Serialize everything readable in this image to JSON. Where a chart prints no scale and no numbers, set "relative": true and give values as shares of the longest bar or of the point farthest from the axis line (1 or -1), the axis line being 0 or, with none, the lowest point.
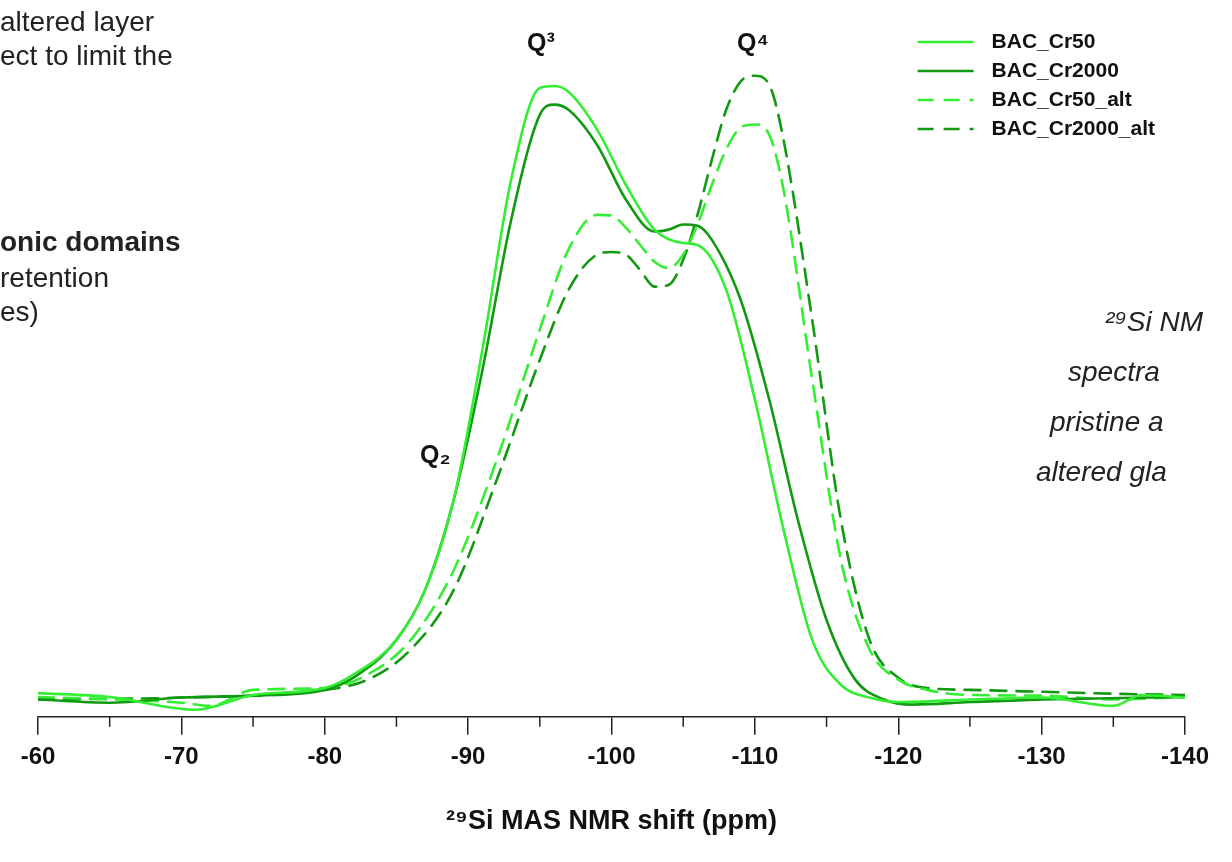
{
  "chart_data": {
    "type": "line",
    "relative": true,
    "xlabel": "²⁹Si MAS NMR shift (ppm)",
    "xlim": [
      -60,
      -140
    ],
    "xticks": [
      -60,
      {
        "value": -65,
        "label": null
      },
      -70,
      {
        "value": -75,
        "label": null
      },
      -80,
      {
        "value": -85,
        "label": null
      },
      -90,
      {
        "value": -95,
        "label": null
      },
      -100,
      {
        "value": -105,
        "label": null
      },
      -110,
      {
        "value": -115,
        "label": null
      },
      -120,
      {
        "value": -125,
        "label": null
      },
      -130,
      {
        "value": -135,
        "label": null
      },
      -140
    ],
    "grid": false,
    "legend": "top right",
    "marker": "none",
    "series": [
      {
        "name": "BAC_Cr50",
        "color": "#33ee33",
        "line_style": "solid",
        "x": [
          -60,
          -65,
          -71,
          -75,
          -80,
          -82,
          -85,
          -87,
          -89,
          -91,
          -93,
          -95,
          -96,
          -97,
          -99,
          -101,
          -103,
          -105,
          -106,
          -108,
          -110,
          -112,
          -114,
          -116,
          -118,
          -120,
          -125,
          -130,
          -135,
          -137,
          -140
        ],
        "values": [
          0.037,
          0.031,
          0.011,
          0.034,
          0.045,
          0.066,
          0.12,
          0.198,
          0.339,
          0.573,
          0.838,
          0.981,
          0.984,
          0.975,
          0.916,
          0.83,
          0.76,
          0.739,
          0.736,
          0.666,
          0.495,
          0.292,
          0.12,
          0.05,
          0.03,
          0.023,
          0.027,
          0.03,
          0.017,
          0.034,
          0.03
        ]
      },
      {
        "name": "BAC_Cr2000",
        "color": "#119911",
        "line_style": "solid",
        "x": [
          -60,
          -65,
          -70,
          -75,
          -80,
          -82,
          -85,
          -87,
          -89,
          -91,
          -93,
          -95,
          -96,
          -97,
          -99,
          -101,
          -103,
          -104,
          -105,
          -106,
          -107,
          -109,
          -111,
          -113,
          -115,
          -117,
          -119,
          -121,
          -125,
          -130,
          -140
        ],
        "values": [
          0.027,
          0.022,
          0.03,
          0.033,
          0.042,
          0.061,
          0.12,
          0.198,
          0.339,
          0.541,
          0.775,
          0.939,
          0.955,
          0.947,
          0.892,
          0.807,
          0.757,
          0.76,
          0.768,
          0.766,
          0.744,
          0.651,
          0.495,
          0.307,
          0.151,
          0.058,
          0.027,
          0.019,
          0.023,
          0.027,
          0.031
        ]
      },
      {
        "name": "BAC_Cr50_alt",
        "color": "#33ee33",
        "line_style": "dashed",
        "x": [
          -60,
          -70,
          -72,
          -75,
          -80,
          -83,
          -86,
          -89,
          -92,
          -95,
          -97,
          -99,
          -100,
          -101,
          -102,
          -103,
          -104,
          -105,
          -106,
          -107,
          -108,
          -109,
          -110,
          -111,
          -112,
          -114,
          -116,
          -118,
          -120,
          -122,
          -125,
          -130,
          -135,
          -140
        ],
        "values": [
          0.031,
          0.022,
          0.017,
          0.042,
          0.045,
          0.066,
          0.12,
          0.229,
          0.401,
          0.604,
          0.729,
          0.783,
          0.782,
          0.763,
          0.736,
          0.71,
          0.7,
          0.721,
          0.768,
          0.83,
          0.885,
          0.919,
          0.924,
          0.908,
          0.822,
          0.526,
          0.245,
          0.105,
          0.058,
          0.042,
          0.034,
          0.033,
          0.027,
          0.031
        ]
      },
      {
        "name": "BAC_Cr2000_alt",
        "color": "#119911",
        "line_style": "dashed",
        "x": [
          -60,
          -70,
          -80,
          -83,
          -86,
          -89,
          -92,
          -95,
          -97,
          -99,
          -100,
          -101,
          -102,
          -103,
          -104,
          -105,
          -106,
          -107,
          -108,
          -109,
          -110,
          -111,
          -112,
          -114,
          -116,
          -118,
          -120,
          -122,
          -125,
          -130,
          -135,
          -140
        ],
        "values": [
          0.027,
          0.03,
          0.042,
          0.058,
          0.105,
          0.198,
          0.37,
          0.557,
          0.666,
          0.721,
          0.725,
          0.721,
          0.697,
          0.671,
          0.674,
          0.713,
          0.783,
          0.869,
          0.947,
          0.991,
          1,
          0.986,
          0.9,
          0.619,
          0.307,
          0.12,
          0.061,
          0.045,
          0.042,
          0.039,
          0.036,
          0.034
        ]
      }
    ],
    "annotations": [
      "Q³",
      "Q⁴",
      "Q₂",
      "altered layer",
      "ect to limit the",
      "onic domains",
      "retention",
      "es)",
      "²⁹Si NM",
      "spectra",
      "pristine a",
      "altered gla"
    ]
  }
}
